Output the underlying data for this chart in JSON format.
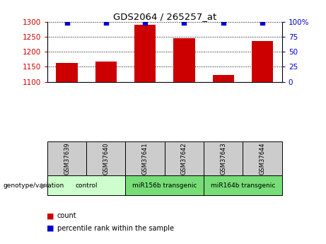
{
  "title": "GDS2064 / 265257_at",
  "samples": [
    "GSM37639",
    "GSM37640",
    "GSM37641",
    "GSM37642",
    "GSM37643",
    "GSM37644"
  ],
  "counts": [
    1163,
    1167,
    1290,
    1246,
    1122,
    1236
  ],
  "percentile_ranks": [
    99,
    99,
    99,
    99,
    99,
    99
  ],
  "ylim_left": [
    1100,
    1300
  ],
  "ylim_right": [
    0,
    100
  ],
  "yticks_left": [
    1100,
    1150,
    1200,
    1250,
    1300
  ],
  "yticks_right": [
    0,
    25,
    50,
    75,
    100
  ],
  "bar_color": "#cc0000",
  "dot_color": "#0000cc",
  "group_info": [
    {
      "label": "control",
      "start": 0,
      "end": 1,
      "color": "#ccffcc"
    },
    {
      "label": "miR156b transgenic",
      "start": 2,
      "end": 3,
      "color": "#77dd77"
    },
    {
      "label": "miR164b transgenic",
      "start": 4,
      "end": 5,
      "color": "#77dd77"
    }
  ],
  "xlabel_genotype": "genotype/variation",
  "legend_count_label": "count",
  "legend_percentile_label": "percentile rank within the sample",
  "background_color": "#ffffff",
  "tick_label_color_left": "#cc0000",
  "tick_label_color_right": "#0000cc",
  "sample_box_color": "#cccccc",
  "bar_width": 0.55
}
